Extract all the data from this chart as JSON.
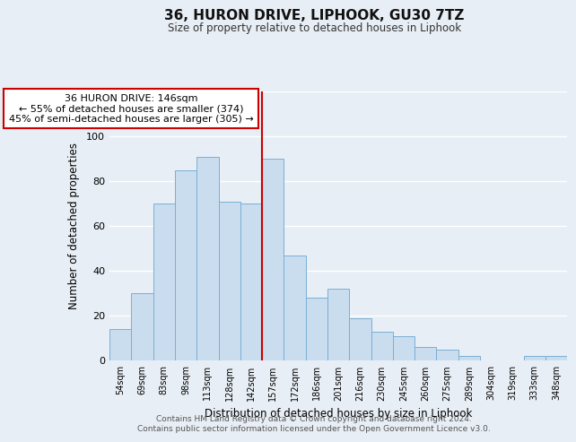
{
  "title": "36, HURON DRIVE, LIPHOOK, GU30 7TZ",
  "subtitle": "Size of property relative to detached houses in Liphook",
  "xlabel": "Distribution of detached houses by size in Liphook",
  "ylabel": "Number of detached properties",
  "categories": [
    "54sqm",
    "69sqm",
    "83sqm",
    "98sqm",
    "113sqm",
    "128sqm",
    "142sqm",
    "157sqm",
    "172sqm",
    "186sqm",
    "201sqm",
    "216sqm",
    "230sqm",
    "245sqm",
    "260sqm",
    "275sqm",
    "289sqm",
    "304sqm",
    "319sqm",
    "333sqm",
    "348sqm"
  ],
  "values": [
    14,
    30,
    70,
    85,
    91,
    71,
    70,
    90,
    47,
    28,
    32,
    19,
    13,
    11,
    6,
    5,
    2,
    0,
    0,
    2,
    2
  ],
  "bar_color": "#c9ddef",
  "bar_edge_color": "#7aafd4",
  "vline_x_idx": 6,
  "vline_color": "#cc0000",
  "annotation_text": "36 HURON DRIVE: 146sqm\n← 55% of detached houses are smaller (374)\n45% of semi-detached houses are larger (305) →",
  "annotation_box_facecolor": "#ffffff",
  "annotation_box_edgecolor": "#cc0000",
  "ylim": [
    0,
    120
  ],
  "yticks": [
    0,
    20,
    40,
    60,
    80,
    100,
    120
  ],
  "plot_bg": "#e8eef5",
  "fig_bg": "#e8eef5",
  "grid_color": "#ffffff",
  "footer_line1": "Contains HM Land Registry data © Crown copyright and database right 2024.",
  "footer_line2": "Contains public sector information licensed under the Open Government Licence v3.0."
}
